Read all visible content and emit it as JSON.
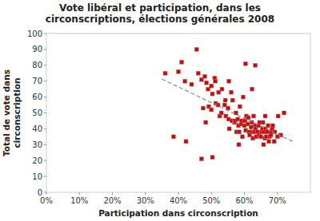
{
  "chart_data": {
    "type": "scatter",
    "title": "Vote libéral et participation, dans les\ncirconscriptions, élections générales 2008",
    "x_label": "Participation dans circonscription",
    "y_label": "Total de vote dans\ncirconscription",
    "xlim": [
      0,
      0.8
    ],
    "ylim": [
      0,
      100
    ],
    "xticks": [
      {
        "value": 0.0,
        "label": "0%"
      },
      {
        "value": 0.1,
        "label": "10%"
      },
      {
        "value": 0.2,
        "label": "20%"
      },
      {
        "value": 0.3,
        "label": "30%"
      },
      {
        "value": 0.4,
        "label": "40%"
      },
      {
        "value": 0.5,
        "label": "50%"
      },
      {
        "value": 0.6,
        "label": "60%"
      },
      {
        "value": 0.7,
        "label": "70%"
      }
    ],
    "yticks": [
      0,
      10,
      20,
      30,
      40,
      50,
      60,
      70,
      80,
      90,
      100
    ],
    "grid": false,
    "series": [
      {
        "type": "scatter",
        "color": "#DD0000",
        "marker": "square",
        "x": [
          0.385,
          0.36,
          0.41,
          0.4,
          0.42,
          0.44,
          0.455,
          0.46,
          0.47,
          0.48,
          0.475,
          0.485,
          0.49,
          0.492,
          0.5,
          0.5,
          0.503,
          0.51,
          0.512,
          0.513,
          0.52,
          0.522,
          0.525,
          0.53,
          0.532,
          0.54,
          0.542,
          0.544,
          0.55,
          0.552,
          0.554,
          0.56,
          0.562,
          0.564,
          0.57,
          0.572,
          0.574,
          0.576,
          0.58,
          0.582,
          0.584,
          0.586,
          0.59,
          0.592,
          0.594,
          0.596,
          0.6,
          0.602,
          0.604,
          0.606,
          0.61,
          0.612,
          0.614,
          0.616,
          0.62,
          0.622,
          0.624,
          0.626,
          0.628,
          0.63,
          0.632,
          0.634,
          0.636,
          0.64,
          0.642,
          0.644,
          0.646,
          0.65,
          0.652,
          0.654,
          0.656,
          0.658,
          0.66,
          0.662,
          0.664,
          0.666,
          0.67,
          0.672,
          0.674,
          0.676,
          0.68,
          0.682,
          0.684,
          0.686,
          0.69,
          0.692,
          0.7,
          0.702,
          0.71,
          0.72,
          0.47,
          0.483,
          0.503,
          0.553,
          0.603,
          0.623,
          0.633,
          0.663,
          0.423,
          0.583
        ],
        "values": [
          35,
          75,
          82,
          76,
          70,
          68,
          90,
          75,
          71,
          73,
          53,
          69,
          65,
          54,
          52,
          67,
          62,
          72,
          70,
          56,
          55,
          63,
          48,
          50,
          65,
          55,
          58,
          48,
          53,
          46,
          40,
          63,
          45,
          58,
          44,
          45,
          50,
          38,
          46,
          42,
          38,
          54,
          43,
          45,
          35,
          60,
          42,
          45,
          39,
          48,
          43,
          47,
          38,
          36,
          41,
          44,
          38,
          34,
          48,
          38,
          42,
          40,
          35,
          38,
          42,
          36,
          44,
          35,
          38,
          40,
          44,
          30,
          38,
          34,
          40,
          35,
          38,
          42,
          32,
          35,
          36,
          38,
          40,
          42,
          32,
          38,
          35,
          48,
          36,
          50,
          21,
          44,
          22,
          70,
          81,
          65,
          80,
          48,
          32,
          30
        ]
      },
      {
        "type": "line",
        "color": "#888888",
        "line_style": "dashed",
        "x": [
          0.35,
          0.75
        ],
        "values": [
          71.319,
          31.682
        ]
      }
    ]
  }
}
